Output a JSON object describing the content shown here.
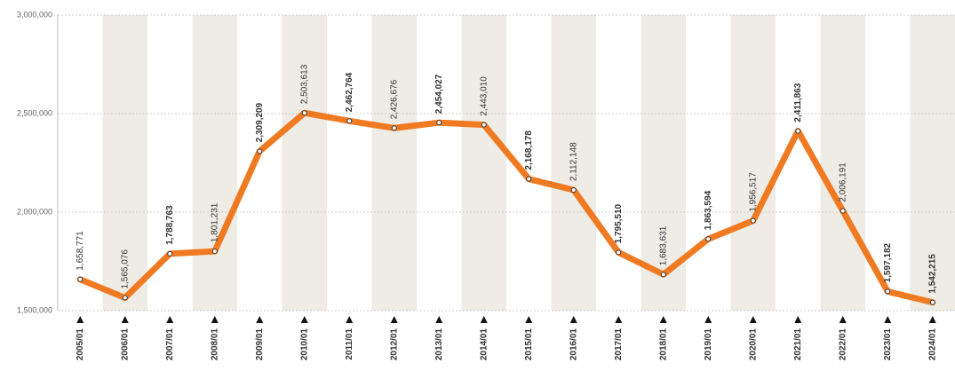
{
  "chart_data": {
    "type": "line",
    "categories": [
      "2005/01",
      "2006/01",
      "2007/01",
      "2008/01",
      "2009/01",
      "2010/01",
      "2011/01",
      "2012/01",
      "2013/01",
      "2014/01",
      "2015/01",
      "2016/01",
      "2017/01",
      "2018/01",
      "2019/01",
      "2020/01",
      "2021/01",
      "2022/01",
      "2023/01",
      "2024/01"
    ],
    "series": [
      {
        "color": "#f07a22",
        "values": [
          1658771,
          1565076,
          1788763,
          1801231,
          2309209,
          2503613,
          2462764,
          2426676,
          2454027,
          2443010,
          2168178,
          2112148,
          1795510,
          1683631,
          1863594,
          1956517,
          2411863,
          2006191,
          1597182,
          1542215
        ],
        "value_labels": [
          "1,658,771",
          "1,565,076",
          "1,788,763",
          "1,801,231",
          "2,309,209",
          "2,503,613",
          "2,462,764",
          "2,426,676",
          "2,454,027",
          "2,443,010",
          "2,168,178",
          "2,112,148",
          "1,795,510",
          "1,683,631",
          "1,863,594",
          "1,956,517",
          "2,411,863",
          "2,006,191",
          "1,597,182",
          "1,542,215"
        ]
      }
    ],
    "ylim": [
      1500000,
      3000000
    ],
    "yticks": [
      {
        "value": 1500000,
        "label": "1,500,000"
      },
      {
        "value": 2000000,
        "label": "2,000,000"
      },
      {
        "value": 2500000,
        "label": "2,500,000"
      },
      {
        "value": 3000000,
        "label": "3,000,000"
      }
    ],
    "grid": true
  }
}
